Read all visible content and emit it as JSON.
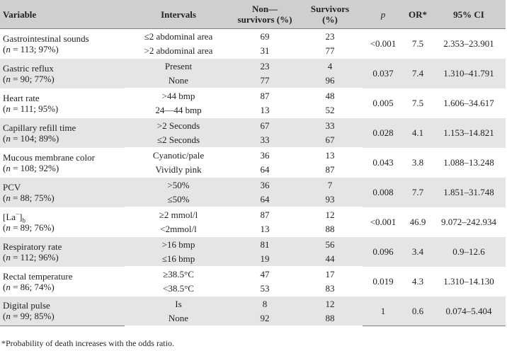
{
  "table": {
    "headers": {
      "variable": "Variable",
      "intervals": "Intervals",
      "non_survivors_line1": "Non—",
      "non_survivors_line2": "survivors (%)",
      "survivors_line1": "Survivors",
      "survivors_line2": "(%)",
      "p": "p",
      "or": "OR*",
      "ci": "95% CI"
    },
    "rows": [
      {
        "name": "Gastrointestinal sounds",
        "n_label": "n",
        "n_value": " = 113; 97%)",
        "intervals": [
          "≤2 abdominal area",
          ">2 abdominal area"
        ],
        "non_survivors": [
          "69",
          "31"
        ],
        "survivors": [
          "23",
          "77"
        ],
        "p": "<0.001",
        "or": "7.5",
        "ci": "2.353–23.901"
      },
      {
        "name": "Gastric reflux",
        "n_label": "n",
        "n_value": " = 90; 77%)",
        "intervals": [
          "Present",
          "None"
        ],
        "non_survivors": [
          "23",
          "77"
        ],
        "survivors": [
          "4",
          "96"
        ],
        "p": "0.037",
        "or": "7.4",
        "ci": "1.310–41.791"
      },
      {
        "name": "Heart rate",
        "n_label": "n",
        "n_value": " = 111; 95%)",
        "intervals": [
          ">44 bmp",
          "24—44 bmp"
        ],
        "non_survivors": [
          "87",
          "13"
        ],
        "survivors": [
          "48",
          "52"
        ],
        "p": "0.005",
        "or": "7.5",
        "ci": "1.606–34.617"
      },
      {
        "name": "Capillary refill time",
        "n_label": "n",
        "n_value": " = 104; 89%)",
        "intervals": [
          ">2 Seconds",
          "≤2 Seconds"
        ],
        "non_survivors": [
          "67",
          "33"
        ],
        "survivors": [
          "33",
          "67"
        ],
        "p": "0.028",
        "or": "4.1",
        "ci": "1.153–14.821"
      },
      {
        "name": "Mucous membrane color",
        "n_label": "n",
        "n_value": " = 108; 92%)",
        "intervals": [
          "Cyanotic/pale",
          "Vividly pink"
        ],
        "non_survivors": [
          "36",
          "64"
        ],
        "survivors": [
          "13",
          "87"
        ],
        "p": "0.043",
        "or": "3.8",
        "ci": "1.088–13.248"
      },
      {
        "name": "PCV",
        "n_label": "n",
        "n_value": " = 88; 75%)",
        "intervals": [
          ">50%",
          "≤50%"
        ],
        "non_survivors": [
          "36",
          "64"
        ],
        "survivors": [
          "7",
          "93"
        ],
        "p": "0.008",
        "or": "7.7",
        "ci": "1.851–31.748"
      },
      {
        "name": "[La",
        "name_sup": "−",
        "name_close": "]",
        "name_sub": "b",
        "n_label": "n",
        "n_value": " = 89; 76%)",
        "intervals": [
          "≥2 mmol/l",
          "<2mmol/l"
        ],
        "non_survivors": [
          "87",
          "13"
        ],
        "survivors": [
          "12",
          "88"
        ],
        "p": "<0.001",
        "or": "46.9",
        "ci": "9.072–242.934"
      },
      {
        "name": "Respiratory rate",
        "n_label": "n",
        "n_value": " = 112; 96%)",
        "intervals": [
          ">16 bmp",
          "≤16 bmp"
        ],
        "non_survivors": [
          "81",
          "19"
        ],
        "survivors": [
          "56",
          "44"
        ],
        "p": "0.096",
        "or": "3.4",
        "ci": "0.9–12.6"
      },
      {
        "name": "Rectal temperature",
        "n_label": "n",
        "n_value": " = 86; 74%)",
        "intervals": [
          "≥38.5°C",
          "<38.5°C"
        ],
        "non_survivors": [
          "47",
          "53"
        ],
        "survivors": [
          "17",
          "83"
        ],
        "p": "0.019",
        "or": "4.3",
        "ci": "1.310–14.130"
      },
      {
        "name": "Digital pulse",
        "n_label": "n",
        "n_value": " = 99; 85%)",
        "intervals": [
          "Is",
          "None"
        ],
        "non_survivors": [
          "8",
          "92"
        ],
        "survivors": [
          "12",
          "88"
        ],
        "p": "1",
        "or": "0.6",
        "ci": "0.074–5.404"
      }
    ]
  },
  "footnote": "*Probability of death increases with the odds ratio."
}
